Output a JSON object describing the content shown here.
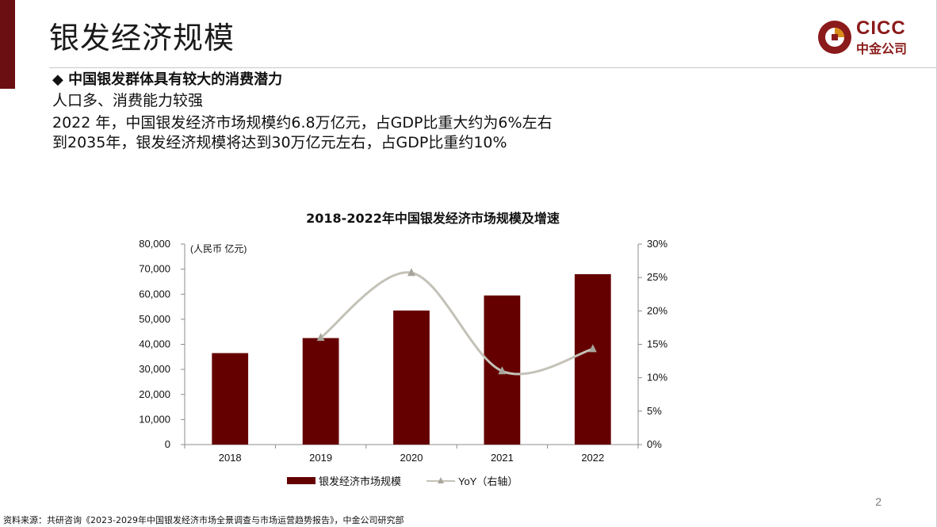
{
  "slide": {
    "title": "银发经济规模",
    "bullet": "◆ 中国银发群体具有较大的消费潜力",
    "lines": [
      "人口多、消费能力较强",
      "2022 年，中国银发经济市场规模约6.8万亿元，占GDP比重大约为6%左右",
      "到2035年，银发经济规模将达到30万亿元左右，占GDP比重约10%"
    ],
    "page_number": "2",
    "source": "资料来源：共研咨询《2023-2029年中国银发经济市场全景调查与市场运营趋势报告》，中金公司研究部"
  },
  "logo": {
    "en": "CICC",
    "cn": "中金公司"
  },
  "colors": {
    "accent": "#6b0f12",
    "bar": "#650000",
    "line": "#c4c2b8"
  },
  "chart_data": {
    "type": "bar",
    "title": "2018-2022年中国银发经济市场规模及增速",
    "unit_label": "(人民币 亿元)",
    "categories": [
      "2018",
      "2019",
      "2020",
      "2021",
      "2022"
    ],
    "series": [
      {
        "name": "银发经济市场规模",
        "type": "bar",
        "axis": "left",
        "values": [
          36500,
          42500,
          53500,
          59500,
          68000
        ]
      },
      {
        "name": "YoY（右轴）",
        "type": "line",
        "axis": "right",
        "values": [
          null,
          0.16,
          0.257,
          0.11,
          0.143
        ]
      }
    ],
    "y_left": {
      "min": 0,
      "max": 80000,
      "ticks": [
        "0",
        "10,000",
        "20,000",
        "30,000",
        "40,000",
        "50,000",
        "60,000",
        "70,000",
        "80,000"
      ]
    },
    "y_right": {
      "min": 0,
      "max": 0.3,
      "ticks": [
        "0%",
        "5%",
        "10%",
        "15%",
        "20%",
        "25%",
        "30%"
      ]
    },
    "legend_position": "bottom",
    "grid": false
  }
}
